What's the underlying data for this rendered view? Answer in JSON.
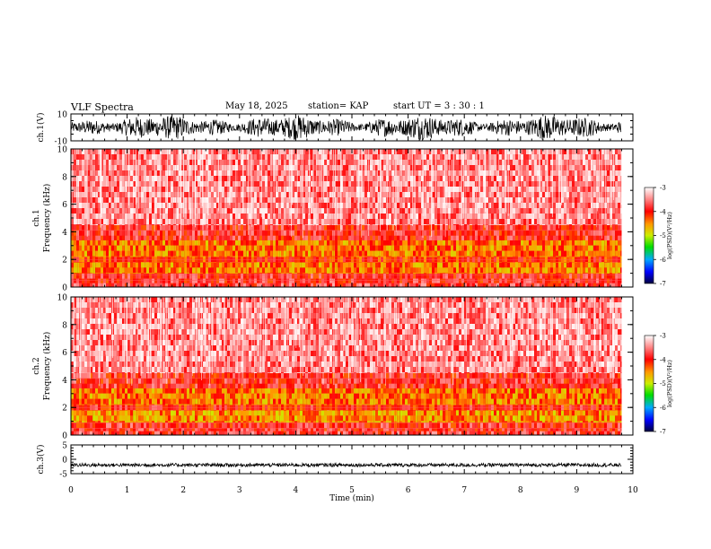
{
  "header": {
    "title": "VLF Spectra",
    "date": "May 18, 2025",
    "station": "station= KAP",
    "start": "start  UT =   3  : 30 : 1"
  },
  "chart_data": [
    {
      "type": "line",
      "panel": "ch1",
      "ylabel": "ch.1(V)",
      "ylim": [
        -10,
        10
      ],
      "yticks": [
        -10,
        10
      ],
      "xlim": [
        0,
        10
      ],
      "signal": "broadband noise, approx amplitude +/-7 V",
      "series_end_min": 9.8
    },
    {
      "type": "heatmap",
      "panel": "ch1_spectrogram",
      "ylabel": "Frequency (kHz)",
      "ylabel2": "ch.1",
      "ylim": [
        0,
        10
      ],
      "yticks": [
        0,
        2,
        4,
        6,
        8,
        10
      ],
      "xlim": [
        0,
        10
      ],
      "series_end_min": 9.8,
      "bands": [
        {
          "from_khz": 0.0,
          "to_khz": 0.3,
          "level": -3.8
        },
        {
          "from_khz": 0.3,
          "to_khz": 1.0,
          "level": -3.9
        },
        {
          "from_khz": 1.0,
          "to_khz": 1.8,
          "level": -4.4
        },
        {
          "from_khz": 1.8,
          "to_khz": 2.2,
          "level": -4.1
        },
        {
          "from_khz": 2.2,
          "to_khz": 3.4,
          "level": -4.4
        },
        {
          "from_khz": 3.4,
          "to_khz": 4.5,
          "level": -3.9
        },
        {
          "from_khz": 4.5,
          "to_khz": 10.0,
          "level": -3.5
        }
      ],
      "colorbar": {
        "label": "log(PSD)(V²/Hz)",
        "range": [
          -7,
          -3
        ],
        "ticks": [
          -7,
          -6,
          -5,
          -4,
          -3
        ]
      }
    },
    {
      "type": "heatmap",
      "panel": "ch2_spectrogram",
      "ylabel": "Frequency (kHz)",
      "ylabel2": "ch.2",
      "ylim": [
        0,
        10
      ],
      "yticks": [
        0,
        2,
        4,
        6,
        8,
        10
      ],
      "xlim": [
        0,
        10
      ],
      "series_end_min": 9.8,
      "bands": [
        {
          "from_khz": 0.0,
          "to_khz": 0.3,
          "level": -3.8
        },
        {
          "from_khz": 0.3,
          "to_khz": 0.9,
          "level": -3.9
        },
        {
          "from_khz": 0.9,
          "to_khz": 1.8,
          "level": -4.5
        },
        {
          "from_khz": 1.8,
          "to_khz": 2.2,
          "level": -4.0
        },
        {
          "from_khz": 2.2,
          "to_khz": 3.4,
          "level": -4.4
        },
        {
          "from_khz": 3.4,
          "to_khz": 4.5,
          "level": -3.9
        },
        {
          "from_khz": 4.5,
          "to_khz": 10.0,
          "level": -3.5
        }
      ],
      "colorbar": {
        "label": "log(PSD)(V²/Hz)",
        "range": [
          -7,
          -3
        ],
        "ticks": [
          -7,
          -6,
          -5,
          -4,
          -3
        ]
      }
    },
    {
      "type": "line",
      "panel": "ch3",
      "ylabel": "ch.3(V)",
      "ylim": [
        -5,
        5
      ],
      "yticks": [
        -5,
        0,
        5
      ],
      "xlim": [
        0,
        10
      ],
      "signal": "narrow band around -2 V, approx +/-0.6 V",
      "center": -2,
      "series_end_min": 9.8,
      "xlabel": "Time (min)",
      "xticks": [
        0,
        1,
        2,
        3,
        4,
        5,
        6,
        7,
        8,
        9,
        10
      ]
    }
  ],
  "colors": {
    "axis": "#000000",
    "trace": "#000000"
  }
}
